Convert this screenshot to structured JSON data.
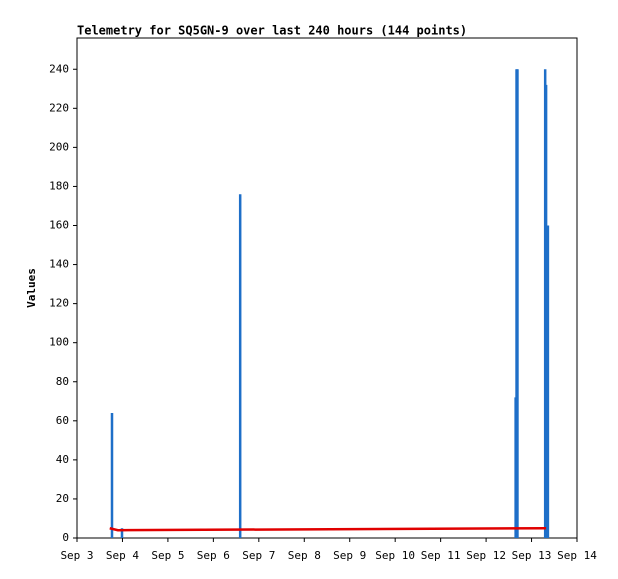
{
  "chart_data": {
    "type": "combo",
    "title": "Telemetry for SQ5GN-9 over last 240 hours (144 points)",
    "y_label": "Values",
    "xlim": [
      3,
      14
    ],
    "xticks": [
      {
        "value": 3,
        "label": "Sep 3"
      },
      {
        "value": 4,
        "label": "Sep 4"
      },
      {
        "value": 5,
        "label": "Sep 5"
      },
      {
        "value": 6,
        "label": "Sep 6"
      },
      {
        "value": 7,
        "label": "Sep 7"
      },
      {
        "value": 8,
        "label": "Sep 8"
      },
      {
        "value": 9,
        "label": "Sep 9"
      },
      {
        "value": 10,
        "label": "Sep 10"
      },
      {
        "value": 11,
        "label": "Sep 11"
      },
      {
        "value": 12,
        "label": "Sep 12"
      },
      {
        "value": 13,
        "label": "Sep 13"
      },
      {
        "value": 14,
        "label": "Sep 14"
      }
    ],
    "ylim": [
      0,
      256
    ],
    "yticks": [
      0,
      20,
      40,
      60,
      80,
      100,
      120,
      140,
      160,
      180,
      200,
      220,
      240
    ],
    "grid": false,
    "series": [
      {
        "type": "impulse",
        "color": "#1e6fc8",
        "x": [
          3.77,
          3.99,
          6.59,
          12.65,
          12.67,
          12.69,
          13.3,
          13.32,
          13.36
        ],
        "values": [
          64,
          5,
          176,
          72,
          240,
          240,
          240,
          232,
          160
        ]
      },
      {
        "type": "line",
        "color": "#e00000",
        "x": [
          3.72,
          3.9,
          13.32
        ],
        "values": [
          5,
          4,
          5
        ]
      }
    ]
  }
}
